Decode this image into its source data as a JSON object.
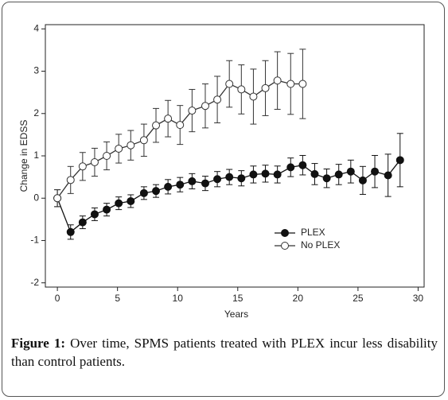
{
  "chart_data": {
    "type": "line",
    "x_label": "Years",
    "y_label": "Change in EDSS",
    "xlim": [
      -1,
      30.5
    ],
    "ylim": [
      -2.1,
      4.1
    ],
    "xticks": [
      0,
      5,
      10,
      15,
      20,
      25,
      30
    ],
    "yticks": [
      -2,
      -1,
      0,
      1,
      2,
      3,
      4
    ],
    "grid": false,
    "legend_position": "lower right",
    "series": [
      {
        "name": "PLEX",
        "color": "#111111",
        "marker_fill": "#111111",
        "x": [
          0,
          1.1,
          2.1,
          3.1,
          4.1,
          5.1,
          6.1,
          7.2,
          8.2,
          9.2,
          10.2,
          11.2,
          12.3,
          13.3,
          14.3,
          15.3,
          16.3,
          17.3,
          18.3,
          19.4,
          20.4,
          21.4,
          22.4,
          23.4,
          24.4,
          25.4,
          26.4,
          27.5,
          28.5
        ],
        "values": [
          0,
          -0.8,
          -0.57,
          -0.38,
          -0.27,
          -0.12,
          -0.07,
          0.12,
          0.17,
          0.27,
          0.32,
          0.4,
          0.35,
          0.45,
          0.5,
          0.47,
          0.56,
          0.58,
          0.56,
          0.73,
          0.78,
          0.57,
          0.47,
          0.56,
          0.63,
          0.42,
          0.63,
          0.54,
          0.9
        ],
        "errors": [
          0.2,
          0.17,
          0.15,
          0.15,
          0.15,
          0.15,
          0.15,
          0.15,
          0.15,
          0.17,
          0.17,
          0.18,
          0.17,
          0.18,
          0.18,
          0.18,
          0.2,
          0.2,
          0.2,
          0.22,
          0.23,
          0.25,
          0.22,
          0.24,
          0.27,
          0.33,
          0.38,
          0.5,
          0.63
        ]
      },
      {
        "name": "No PLEX",
        "color": "#333333",
        "marker_fill": "#ffffff",
        "x": [
          0,
          1.1,
          2.1,
          3.1,
          4.1,
          5.1,
          6.1,
          7.2,
          8.2,
          9.2,
          10.2,
          11.2,
          12.3,
          13.3,
          14.3,
          15.3,
          16.3,
          17.3,
          18.3,
          19.4,
          20.4
        ],
        "values": [
          0,
          0.43,
          0.75,
          0.85,
          1.0,
          1.17,
          1.25,
          1.37,
          1.72,
          1.88,
          1.73,
          2.07,
          2.18,
          2.33,
          2.7,
          2.57,
          2.4,
          2.6,
          2.78,
          2.7,
          2.7
        ],
        "errors": [
          0.2,
          0.32,
          0.33,
          0.33,
          0.33,
          0.34,
          0.35,
          0.38,
          0.4,
          0.43,
          0.46,
          0.5,
          0.52,
          0.55,
          0.55,
          0.58,
          0.65,
          0.65,
          0.68,
          0.72,
          0.82
        ]
      }
    ]
  },
  "caption": {
    "label": "Figure 1:",
    "text": "Over time, SPMS patients treated with PLEX incur less disability than control patients."
  }
}
